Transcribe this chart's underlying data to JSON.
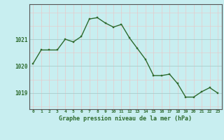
{
  "x": [
    0,
    1,
    2,
    3,
    4,
    5,
    6,
    7,
    8,
    9,
    10,
    11,
    12,
    13,
    14,
    15,
    16,
    17,
    18,
    19,
    20,
    21,
    22,
    23
  ],
  "y": [
    1020.1,
    1020.6,
    1020.6,
    1020.6,
    1021.0,
    1020.9,
    1021.1,
    1021.75,
    1021.8,
    1021.6,
    1021.45,
    1021.55,
    1021.05,
    1020.65,
    1020.25,
    1019.65,
    1019.65,
    1019.7,
    1019.35,
    1018.85,
    1018.85,
    1019.05,
    1019.2,
    1019.0
  ],
  "line_color": "#2d6a2d",
  "marker_color": "#2d6a2d",
  "background_color": "#c8eef0",
  "grid_color_x": "#e8c8c8",
  "grid_color_y": "#a8cccc",
  "title": "Graphe pression niveau de la mer (hPa)",
  "xlabel_ticks": [
    "0",
    "1",
    "2",
    "3",
    "4",
    "5",
    "6",
    "7",
    "8",
    "9",
    "10",
    "11",
    "12",
    "13",
    "14",
    "15",
    "16",
    "17",
    "18",
    "19",
    "20",
    "21",
    "22",
    "23"
  ],
  "yticks": [
    1019,
    1020,
    1021
  ],
  "ylim": [
    1018.4,
    1022.3
  ],
  "xlim": [
    -0.5,
    23.5
  ]
}
